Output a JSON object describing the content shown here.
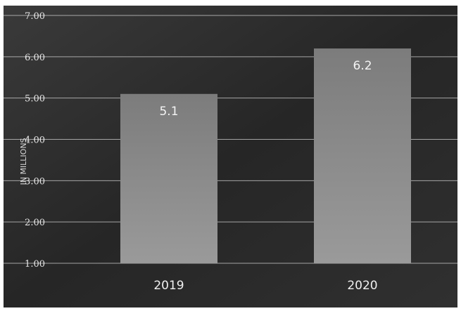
{
  "chart_data": {
    "type": "bar",
    "title": "",
    "xlabel": "",
    "ylabel": "IN MILLIONS",
    "ylim": [
      1.0,
      7.0
    ],
    "yticks": [
      "1.00",
      "2.00",
      "3.00",
      "4.00",
      "5.00",
      "6.00",
      "7.00"
    ],
    "categories": [
      "2019",
      "2020"
    ],
    "values": [
      5.1,
      6.2
    ],
    "data_labels": [
      "5.1",
      "6.2"
    ],
    "grid": true,
    "legend": "none",
    "colors": {
      "background": "#2c2c2c",
      "bar": "#8a8a8a",
      "grid": "#cfcfcf",
      "text": "#ececec"
    }
  }
}
